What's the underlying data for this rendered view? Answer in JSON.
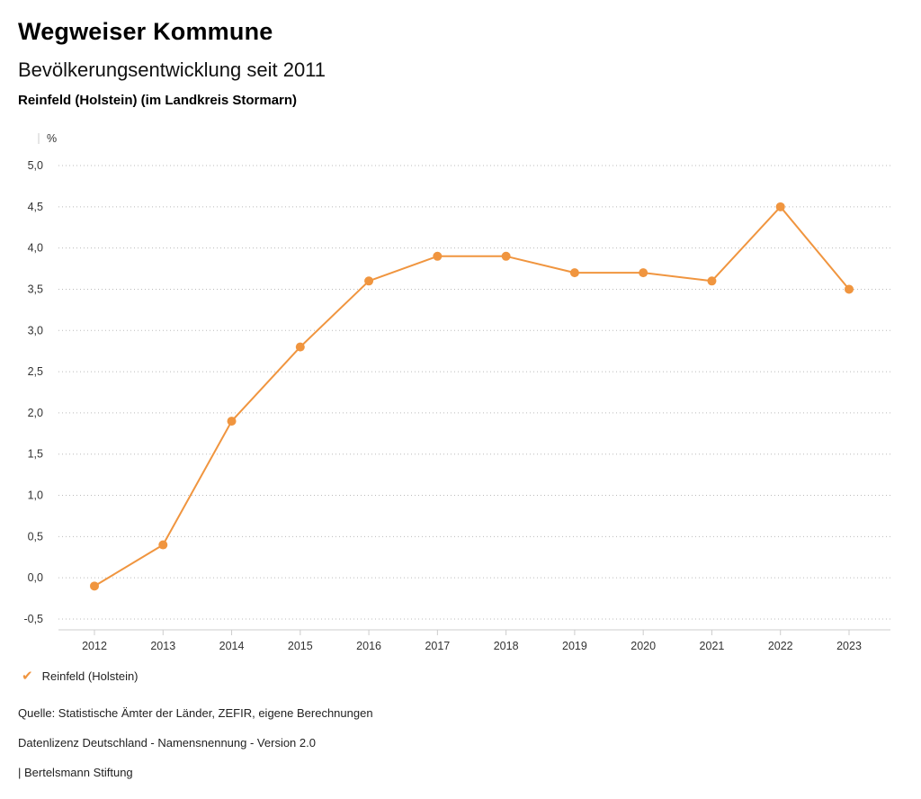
{
  "header": {
    "title": "Wegweiser Kommune",
    "subtitle": "Bevölkerungsentwicklung seit 2011",
    "location": "Reinfeld (Holstein) (im Landkreis Stormarn)"
  },
  "chart_data": {
    "type": "line",
    "title": "Bevölkerungsentwicklung seit 2011",
    "xlabel": "",
    "ylabel": "%",
    "x": [
      2012,
      2013,
      2014,
      2015,
      2016,
      2017,
      2018,
      2019,
      2020,
      2021,
      2022,
      2023
    ],
    "series": [
      {
        "name": "Reinfeld (Holstein)",
        "color": "#F0953F",
        "values": [
          -0.1,
          0.4,
          1.9,
          2.8,
          3.6,
          3.9,
          3.9,
          3.7,
          3.7,
          3.6,
          4.5,
          3.5
        ]
      }
    ],
    "ylim": [
      -0.5,
      5.0
    ],
    "ytick_step": 0.5,
    "grid": "horizontal-dotted",
    "gridline_color": "#bbbbbb",
    "axis_line_color": "#cccccc",
    "tick_label_color": "#333333",
    "decimal_separator": ",",
    "legend_position": "bottom-left"
  },
  "legend": {
    "check_icon": "✔",
    "items": [
      {
        "label": "Reinfeld (Holstein)",
        "color": "#F0953F"
      }
    ]
  },
  "footer": {
    "source": "Quelle: Statistische Ämter der Länder, ZEFIR, eigene Berechnungen",
    "license": "Datenlizenz Deutschland - Namensnennung - Version 2.0",
    "attribution": "| Bertelsmann Stiftung"
  }
}
